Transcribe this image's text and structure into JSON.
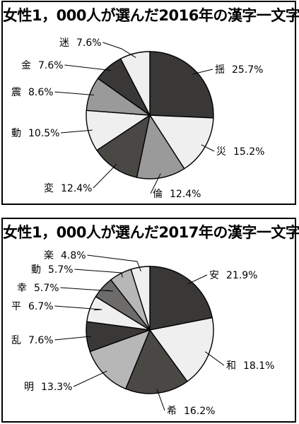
{
  "chart_data": [
    {
      "type": "pie",
      "title": "女性1，000人が選んだ2016年の漢字一文字",
      "slices": [
        {
          "label": "揺",
          "value": 25.7,
          "text": "25.7%",
          "color": "#3a3836"
        },
        {
          "label": "災",
          "value": 15.2,
          "text": "15.2%",
          "color": "#f0eff0"
        },
        {
          "label": "倫",
          "value": 12.4,
          "text": "12.4%",
          "color": "#9b9a9a"
        },
        {
          "label": "変",
          "value": 12.4,
          "text": "12.4%",
          "color": "#4a4845"
        },
        {
          "label": "動",
          "value": 10.5,
          "text": "10.5%",
          "color": "#f0eff0"
        },
        {
          "label": "震",
          "value": 8.6,
          "text": "8.6%",
          "color": "#9b9a9a"
        },
        {
          "label": "金",
          "value": 7.6,
          "text": "7.6%",
          "color": "#3a3836"
        },
        {
          "label": "迷",
          "value": 7.6,
          "text": "7.6%",
          "color": "#f0eff0"
        }
      ]
    },
    {
      "type": "pie",
      "title": "女性1，000人が選んだ2017年の漢字一文字",
      "slices": [
        {
          "label": "安",
          "value": 21.9,
          "text": "21.9%",
          "color": "#3a3836"
        },
        {
          "label": "和",
          "value": 18.1,
          "text": "18.1%",
          "color": "#f0eff0"
        },
        {
          "label": "希",
          "value": 16.2,
          "text": "16.2%",
          "color": "#4a4845"
        },
        {
          "label": "明",
          "value": 13.3,
          "text": "13.3%",
          "color": "#b8b7b7"
        },
        {
          "label": "乱",
          "value": 7.6,
          "text": "7.6%",
          "color": "#3a3836"
        },
        {
          "label": "平",
          "value": 6.7,
          "text": "6.7%",
          "color": "#f0eff0"
        },
        {
          "label": "幸",
          "value": 5.7,
          "text": "5.7%",
          "color": "#6e6c6a"
        },
        {
          "label": "動",
          "value": 5.7,
          "text": "5.7%",
          "color": "#b8b7b7"
        },
        {
          "label": "楽",
          "value": 4.8,
          "text": "4.8%",
          "color": "#f0eff0"
        }
      ]
    }
  ]
}
